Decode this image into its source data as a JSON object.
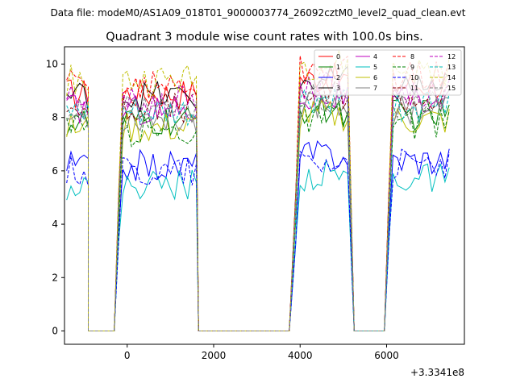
{
  "chart_data": {
    "type": "line",
    "suptitle": "Data file: modeM0/AS1A09_018T01_9000003774_26092cztM0_level2_quad_clean.evt",
    "title": "Quadrant 3 module wise count rates with 100.0s bins.",
    "xlabel": "",
    "ylabel": "",
    "x_offset_label": "+3.3341e8",
    "xlim": [
      -1450,
      7800
    ],
    "ylim": [
      -0.5,
      10.65
    ],
    "xticks": [
      0,
      2000,
      4000,
      6000
    ],
    "xtick_labels": [
      "0",
      "2000",
      "4000",
      "6000"
    ],
    "yticks": [
      0,
      2,
      4,
      6,
      8,
      10
    ],
    "ytick_labels": [
      "0",
      "2",
      "4",
      "6",
      "8",
      "10"
    ],
    "legend_position": "top-right",
    "legend_columns": 4,
    "segments": [
      {
        "x_start": -1400,
        "x_end": -900,
        "base": 8.0
      },
      {
        "x_start": -900,
        "x_end": -300,
        "base": 0
      },
      {
        "x_start": -200,
        "x_end": 1600,
        "base": 8.0
      },
      {
        "x_start": 1650,
        "x_end": 3800,
        "base": 0
      },
      {
        "x_start": 3900,
        "x_end": 5100,
        "base": 8.5
      },
      {
        "x_start": 5250,
        "x_end": 5950,
        "base": 0
      },
      {
        "x_start": 6050,
        "x_end": 7450,
        "base": 8.3
      }
    ],
    "series": [
      {
        "name": "0",
        "color": "#ff0000",
        "dash": "solid",
        "level": 8.9
      },
      {
        "name": "1",
        "color": "#008000",
        "dash": "solid",
        "level": 7.8
      },
      {
        "name": "2",
        "color": "#0000ff",
        "dash": "solid",
        "level": 6.2
      },
      {
        "name": "3",
        "color": "#000000",
        "dash": "solid",
        "level": 8.8
      },
      {
        "name": "4",
        "color": "#bf00bf",
        "dash": "solid",
        "level": 8.3
      },
      {
        "name": "5",
        "color": "#00bfbf",
        "dash": "solid",
        "level": 5.5
      },
      {
        "name": "6",
        "color": "#bfbf00",
        "dash": "solid",
        "level": 7.6
      },
      {
        "name": "7",
        "color": "#808080",
        "dash": "solid",
        "level": 8.0
      },
      {
        "name": "8",
        "color": "#ff0000",
        "dash": "dashed",
        "level": 9.2
      },
      {
        "name": "9",
        "color": "#008000",
        "dash": "dashed",
        "level": 7.5
      },
      {
        "name": "10",
        "color": "#0000ff",
        "dash": "dashed",
        "level": 6.0
      },
      {
        "name": "11",
        "color": "#800000",
        "dash": "dashed",
        "level": 8.4
      },
      {
        "name": "12",
        "color": "#bf00bf",
        "dash": "dashed",
        "level": 8.6
      },
      {
        "name": "13",
        "color": "#00bfbf",
        "dash": "dashed",
        "level": 8.1
      },
      {
        "name": "14",
        "color": "#bfbf00",
        "dash": "dashed",
        "level": 9.4
      },
      {
        "name": "15",
        "color": "#808080",
        "dash": "dashed",
        "level": 8.2
      }
    ]
  }
}
